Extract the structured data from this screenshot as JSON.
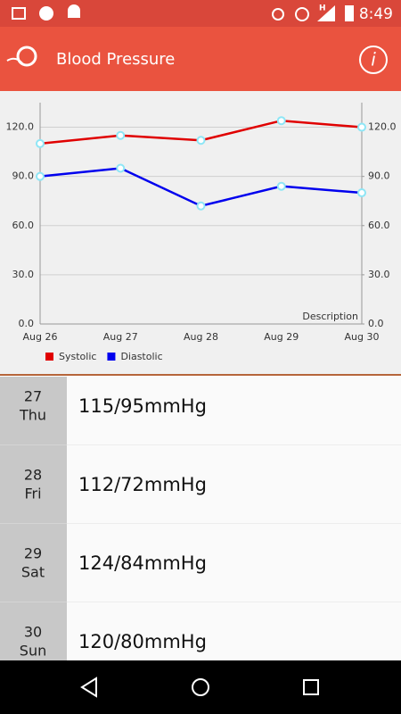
{
  "status_bar": {
    "network": "H",
    "time": "8:49"
  },
  "app_bar": {
    "title": "Blood Pressure"
  },
  "chart_data": {
    "type": "line",
    "categories": [
      "Aug 26",
      "Aug 27",
      "Aug 28",
      "Aug 29",
      "Aug 30"
    ],
    "series": [
      {
        "name": "Systolic",
        "color": "#e00000",
        "values": [
          110,
          115,
          112,
          124,
          120
        ]
      },
      {
        "name": "Diastolic",
        "color": "#0000ee",
        "values": [
          90,
          95,
          72,
          84,
          80
        ]
      }
    ],
    "ylim": [
      0,
      135
    ],
    "yticks": [
      {
        "value": 0,
        "label": "0.0"
      },
      {
        "value": 30,
        "label": "30.0"
      },
      {
        "value": 60,
        "label": "60.0"
      },
      {
        "value": 90,
        "label": "90.0"
      },
      {
        "value": 120,
        "label": "120.0"
      }
    ],
    "y2lim": [
      0,
      135
    ],
    "y2ticks": [
      {
        "value": 0,
        "label": "0.0"
      },
      {
        "value": 30,
        "label": "30.0"
      },
      {
        "value": 60,
        "label": "60.0"
      },
      {
        "value": 90,
        "label": "90.0"
      },
      {
        "value": 120,
        "label": "120.0"
      }
    ],
    "annotation": "Description",
    "grid": true,
    "legend": "bottom-left",
    "marker_color": "#8ee6f6"
  },
  "list": [
    {
      "day": "27",
      "weekday": "Thu",
      "reading": "115/95mmHg"
    },
    {
      "day": "28",
      "weekday": "Fri",
      "reading": "112/72mmHg"
    },
    {
      "day": "29",
      "weekday": "Sat",
      "reading": "124/84mmHg"
    },
    {
      "day": "30",
      "weekday": "Sun",
      "reading": "120/80mmHg"
    }
  ]
}
